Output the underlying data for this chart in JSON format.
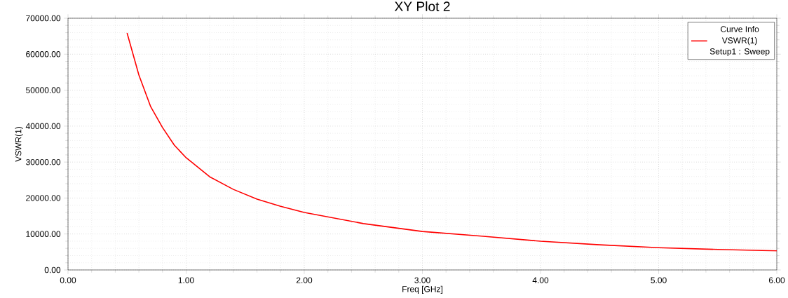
{
  "chart_data": {
    "type": "line",
    "title": "XY Plot 2",
    "xlabel": "Freq [GHz]",
    "ylabel": "VSWR(1)",
    "legend_title": "Curve Info",
    "annotations": [
      "Setup1 : Sweep"
    ],
    "x": [
      0.5,
      0.6,
      0.7,
      0.8,
      0.9,
      1.0,
      1.2,
      1.4,
      1.6,
      1.8,
      2.0,
      2.5,
      3.0,
      3.5,
      4.0,
      4.5,
      5.0,
      5.5,
      6.0
    ],
    "series": [
      {
        "name": "VSWR(1)",
        "color": "#ff0000",
        "values": [
          65900,
          54200,
          45400,
          39600,
          34700,
          31200,
          25900,
          22400,
          19700,
          17700,
          16000,
          12900,
          10700,
          9400,
          8000,
          7000,
          6200,
          5700,
          5300
        ]
      }
    ],
    "xlim": [
      0,
      6
    ],
    "ylim": [
      0,
      70000
    ],
    "xticks": [
      {
        "value": 0,
        "label": "0.00"
      },
      {
        "value": 1,
        "label": "1.00"
      },
      {
        "value": 2,
        "label": "2.00"
      },
      {
        "value": 3,
        "label": "3.00"
      },
      {
        "value": 4,
        "label": "4.00"
      },
      {
        "value": 5,
        "label": "5.00"
      },
      {
        "value": 6,
        "label": "6.00"
      }
    ],
    "yticks": [
      {
        "value": 0,
        "label": "0.00"
      },
      {
        "value": 10000,
        "label": "10000.00"
      },
      {
        "value": 20000,
        "label": "20000.00"
      },
      {
        "value": 30000,
        "label": "30000.00"
      },
      {
        "value": 40000,
        "label": "40000.00"
      },
      {
        "value": 50000,
        "label": "50000.00"
      },
      {
        "value": 60000,
        "label": "60000.00"
      },
      {
        "value": 70000,
        "label": "70000.00"
      }
    ],
    "grid": true,
    "legend": "top right",
    "marker": "none",
    "line_style": "solid"
  }
}
